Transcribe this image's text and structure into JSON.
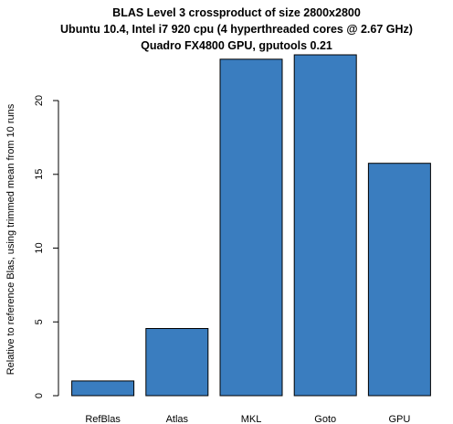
{
  "chart_data": {
    "type": "bar",
    "title_lines": [
      "BLAS Level 3 crossproduct of size 2800x2800",
      "Ubuntu 10.4, Intel i7 920 cpu (4 hyperthreaded cores @ 2.67 GHz)",
      "Quadro FX4800 GPU, gputools 0.21"
    ],
    "categories": [
      "RefBlas",
      "Atlas",
      "MKL",
      "Goto",
      "GPU"
    ],
    "values": [
      1.0,
      4.55,
      22.8,
      23.1,
      15.75
    ],
    "xlabel": "",
    "ylabel": "Relative to reference Blas, using trimmed mean from 10 runs",
    "ylim": [
      0,
      23.1
    ],
    "yticks": [
      0,
      5,
      10,
      15,
      20
    ],
    "grid": false,
    "bar_color": "#3A7DBF",
    "bar_edge_color": "#000000"
  }
}
